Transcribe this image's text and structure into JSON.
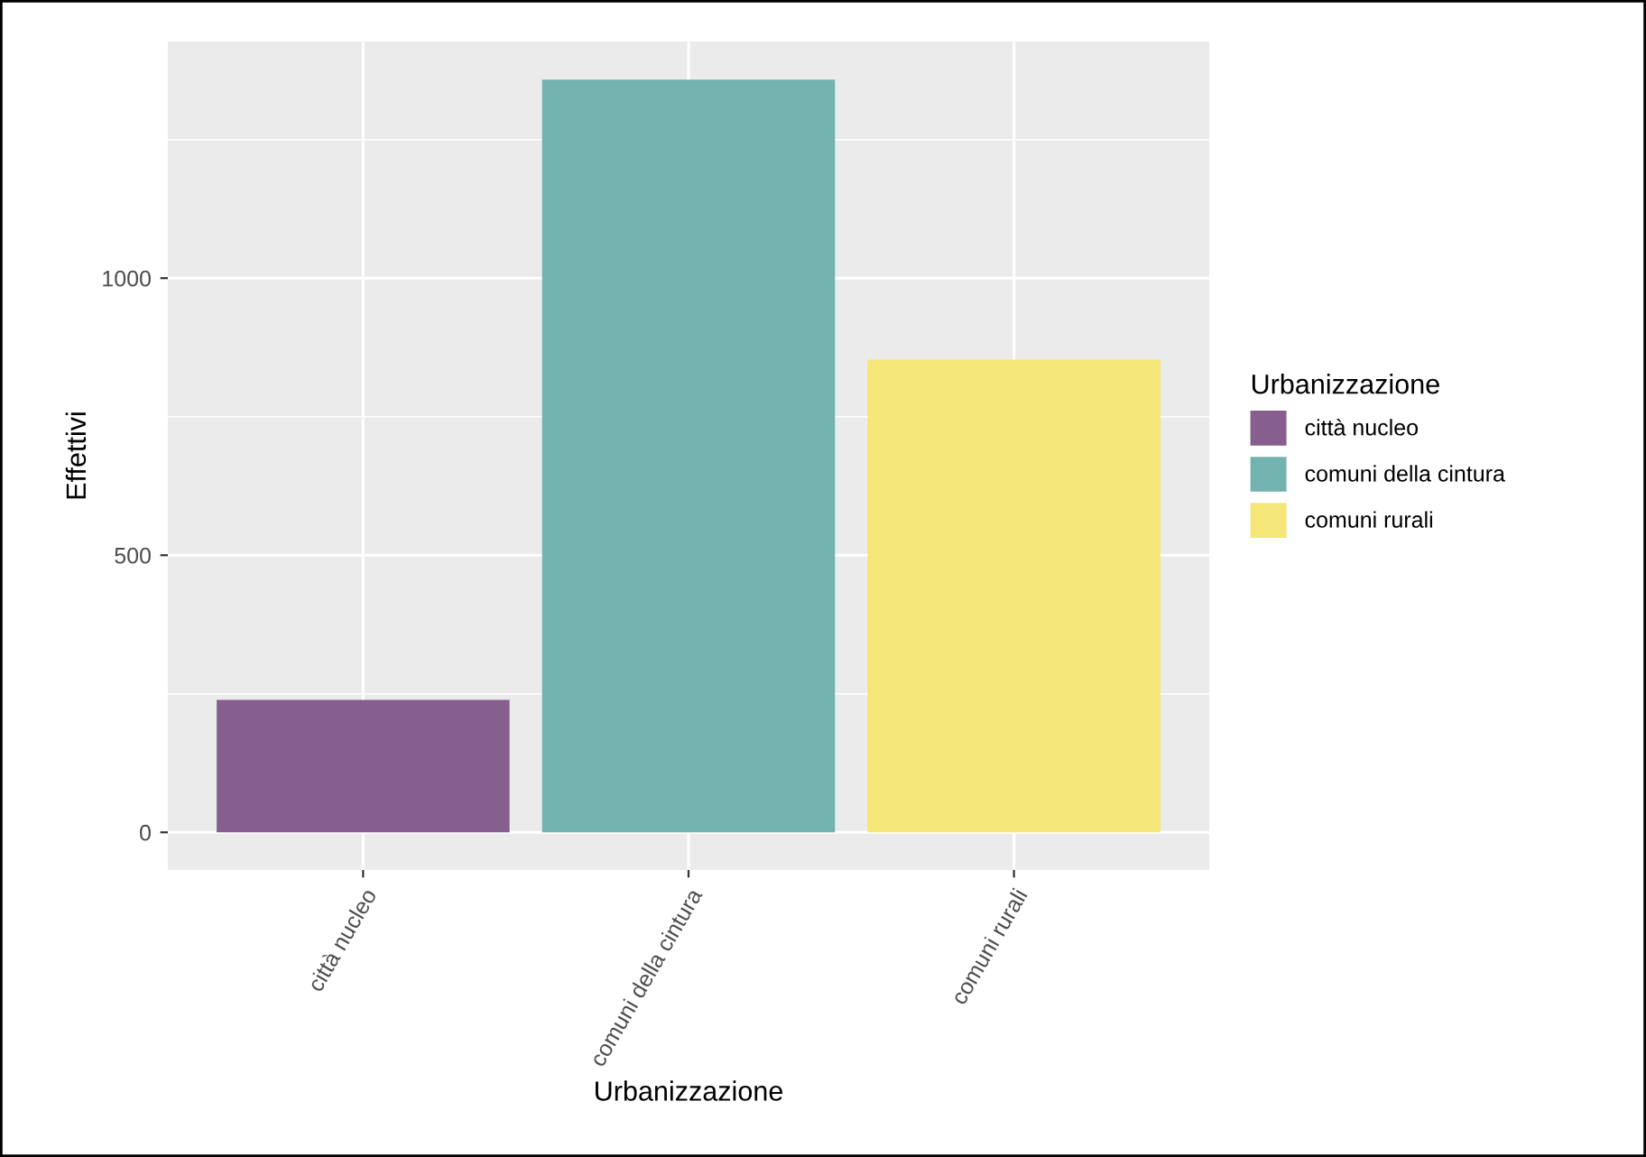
{
  "chart_data": {
    "type": "bar",
    "xlabel": "Urbanizzazione",
    "ylabel": "Effettivi",
    "legend_title": "Urbanizzazione",
    "categories": [
      "città nucleo",
      "comuni della cintura",
      "comuni rurali"
    ],
    "series": [
      {
        "name": "città nucleo",
        "color": "#875f8e",
        "values": [
          239,
          null,
          null
        ]
      },
      {
        "name": "comuni della cintura",
        "color": "#72b3b0",
        "values": [
          null,
          1358,
          null
        ]
      },
      {
        "name": "comuni rurali",
        "color": "#f4e677",
        "values": [
          null,
          null,
          853
        ]
      }
    ],
    "ylim": [
      -68,
      1427
    ],
    "yticks": [
      0,
      500,
      1000
    ],
    "grid": true,
    "legend": "right"
  }
}
